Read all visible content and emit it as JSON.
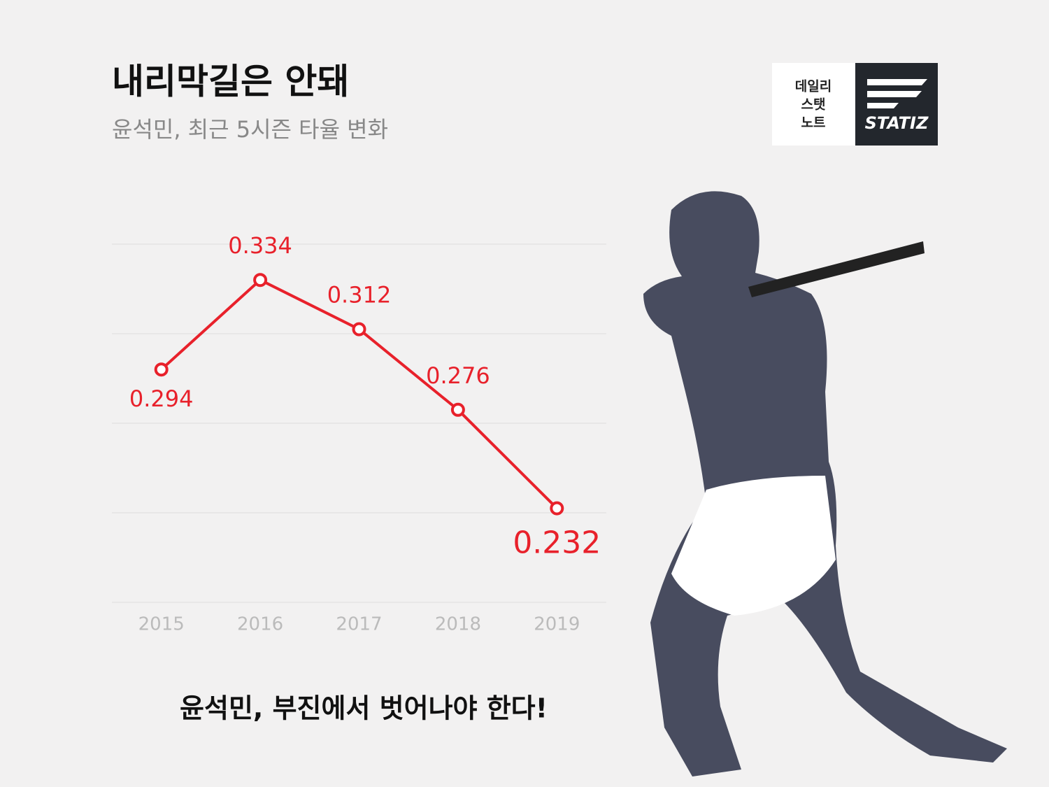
{
  "header": {
    "title": "내리막길은 안돼",
    "subtitle": "윤석민, 최근 5시즌 타율 변화"
  },
  "logo": {
    "lines": [
      "데일리",
      "스탯",
      "노트"
    ],
    "brand": "STATIZ"
  },
  "chart_data": {
    "type": "line",
    "categories": [
      "2015",
      "2016",
      "2017",
      "2018",
      "2019"
    ],
    "series": [
      {
        "name": "윤석민",
        "color": "#e8212b",
        "values": [
          0.294,
          0.334,
          0.312,
          0.276,
          0.232
        ]
      }
    ],
    "ylim": [
      0.19,
      0.35
    ],
    "yticks": [
      0.19,
      0.23,
      0.27,
      0.31,
      0.35
    ],
    "grid": true
  },
  "footer": {
    "text": "윤석민, 부진에서 벗어나야 한다!"
  }
}
